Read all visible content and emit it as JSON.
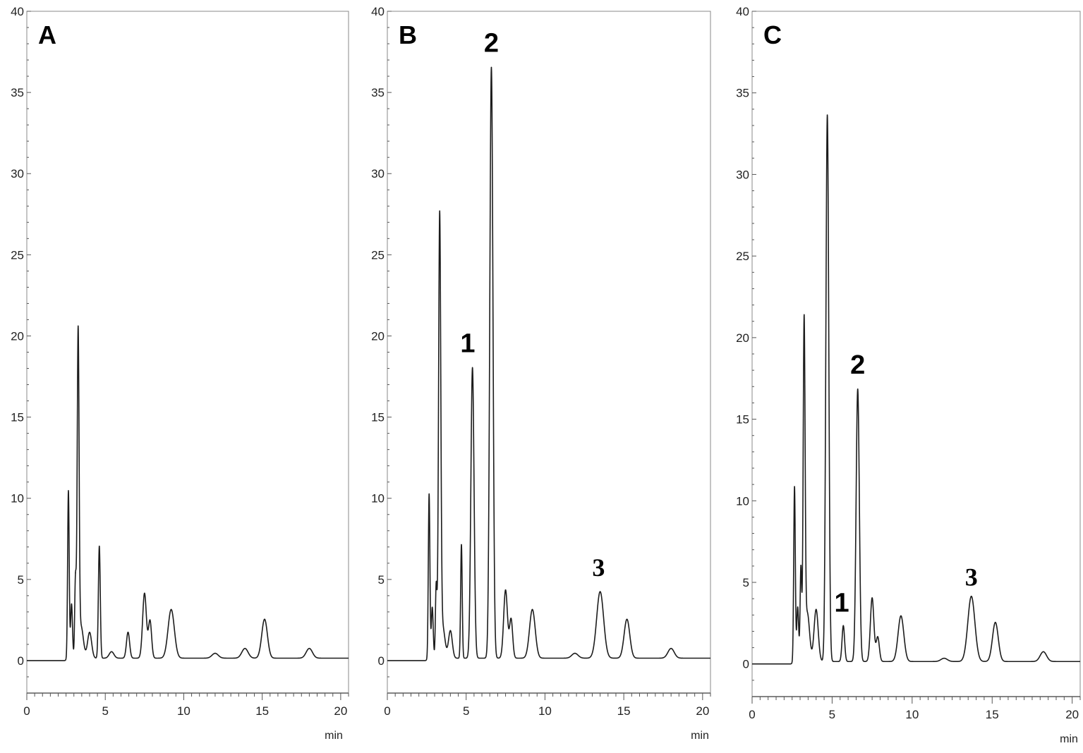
{
  "figure": {
    "unit_label": "min",
    "colors": {
      "trace": "#1c1c1c",
      "frame": "#8a8a8a",
      "background": "#ffffff"
    }
  },
  "chart_data": [
    {
      "type": "line",
      "panel_label": "A",
      "xlabel": "min",
      "ylabel": "",
      "xlim": [
        0,
        20.5
      ],
      "ylim": [
        -2,
        40
      ],
      "x_ticks": [
        0,
        5,
        10,
        15,
        20
      ],
      "y_ticks": [
        0,
        5,
        10,
        15,
        20,
        25,
        30,
        35,
        40
      ],
      "grid": false,
      "peaks": [
        {
          "rt": 2.65,
          "height": 10.4,
          "width": 0.05
        },
        {
          "rt": 2.85,
          "height": 3.4,
          "width": 0.06
        },
        {
          "rt": 3.1,
          "height": 4.8,
          "width": 0.05
        },
        {
          "rt": 3.27,
          "height": 19.5,
          "width": 0.06
        },
        {
          "rt": 3.45,
          "height": 2.0,
          "width": 0.15
        },
        {
          "rt": 4.0,
          "height": 1.6,
          "width": 0.13
        },
        {
          "rt": 4.62,
          "height": 6.9,
          "width": 0.06
        },
        {
          "rt": 5.4,
          "height": 0.4,
          "width": 0.15
        },
        {
          "rt": 6.45,
          "height": 1.6,
          "width": 0.1
        },
        {
          "rt": 7.5,
          "height": 4.0,
          "width": 0.12
        },
        {
          "rt": 7.85,
          "height": 2.3,
          "width": 0.1
        },
        {
          "rt": 9.2,
          "height": 3.0,
          "width": 0.2
        },
        {
          "rt": 12.0,
          "height": 0.3,
          "width": 0.2
        },
        {
          "rt": 13.9,
          "height": 0.6,
          "width": 0.2
        },
        {
          "rt": 15.15,
          "height": 2.4,
          "width": 0.18
        },
        {
          "rt": 18.0,
          "height": 0.6,
          "width": 0.2
        }
      ],
      "peak_labels": []
    },
    {
      "type": "line",
      "panel_label": "B",
      "xlabel": "min",
      "ylabel": "",
      "xlim": [
        0,
        20.5
      ],
      "ylim": [
        -2,
        40
      ],
      "x_ticks": [
        0,
        5,
        10,
        15,
        20
      ],
      "y_ticks": [
        0,
        5,
        10,
        15,
        20,
        25,
        30,
        35,
        40
      ],
      "grid": false,
      "peaks": [
        {
          "rt": 2.65,
          "height": 10.2,
          "width": 0.05
        },
        {
          "rt": 2.85,
          "height": 3.2,
          "width": 0.06
        },
        {
          "rt": 3.1,
          "height": 4.5,
          "width": 0.05
        },
        {
          "rt": 3.32,
          "height": 26.6,
          "width": 0.07
        },
        {
          "rt": 3.5,
          "height": 2.0,
          "width": 0.15
        },
        {
          "rt": 4.0,
          "height": 1.7,
          "width": 0.12
        },
        {
          "rt": 4.7,
          "height": 7.0,
          "width": 0.05
        },
        {
          "rt": 5.4,
          "height": 17.9,
          "width": 0.1
        },
        {
          "rt": 6.6,
          "height": 36.4,
          "width": 0.1
        },
        {
          "rt": 7.5,
          "height": 4.2,
          "width": 0.12
        },
        {
          "rt": 7.85,
          "height": 2.4,
          "width": 0.1
        },
        {
          "rt": 9.2,
          "height": 3.0,
          "width": 0.18
        },
        {
          "rt": 11.9,
          "height": 0.3,
          "width": 0.2
        },
        {
          "rt": 13.5,
          "height": 4.1,
          "width": 0.22
        },
        {
          "rt": 15.2,
          "height": 2.4,
          "width": 0.18
        },
        {
          "rt": 18.0,
          "height": 0.6,
          "width": 0.2
        }
      ],
      "peak_labels": [
        {
          "text": "1",
          "rt": 5.1,
          "y": 19.0,
          "serif": false
        },
        {
          "text": "2",
          "rt": 6.6,
          "y": 37.5,
          "serif": false
        },
        {
          "text": "3",
          "rt": 13.4,
          "y": 5.2,
          "serif": true
        }
      ]
    },
    {
      "type": "line",
      "panel_label": "C",
      "xlabel": "min",
      "ylabel": "",
      "xlim": [
        0,
        20.5
      ],
      "ylim": [
        -2,
        40
      ],
      "x_ticks": [
        0,
        5,
        10,
        15,
        20
      ],
      "y_ticks": [
        0,
        5,
        10,
        15,
        20,
        25,
        30,
        35,
        40
      ],
      "grid": false,
      "peaks": [
        {
          "rt": 2.65,
          "height": 10.8,
          "width": 0.05
        },
        {
          "rt": 2.85,
          "height": 3.4,
          "width": 0.06
        },
        {
          "rt": 3.05,
          "height": 5.8,
          "width": 0.05
        },
        {
          "rt": 3.25,
          "height": 20.2,
          "width": 0.06
        },
        {
          "rt": 3.45,
          "height": 3.0,
          "width": 0.14
        },
        {
          "rt": 4.0,
          "height": 3.2,
          "width": 0.13
        },
        {
          "rt": 4.7,
          "height": 33.5,
          "width": 0.09
        },
        {
          "rt": 5.7,
          "height": 2.2,
          "width": 0.08
        },
        {
          "rt": 6.6,
          "height": 16.7,
          "width": 0.1
        },
        {
          "rt": 7.5,
          "height": 3.9,
          "width": 0.11
        },
        {
          "rt": 7.85,
          "height": 1.5,
          "width": 0.1
        },
        {
          "rt": 9.3,
          "height": 2.8,
          "width": 0.18
        },
        {
          "rt": 12.0,
          "height": 0.2,
          "width": 0.2
        },
        {
          "rt": 13.7,
          "height": 4.0,
          "width": 0.22
        },
        {
          "rt": 15.2,
          "height": 2.4,
          "width": 0.18
        },
        {
          "rt": 18.2,
          "height": 0.6,
          "width": 0.2
        }
      ],
      "peak_labels": [
        {
          "text": "1",
          "rt": 5.6,
          "y": 3.2,
          "serif": false
        },
        {
          "text": "2",
          "rt": 6.6,
          "y": 17.8,
          "serif": false
        },
        {
          "text": "3",
          "rt": 13.7,
          "y": 4.8,
          "serif": true
        }
      ]
    }
  ]
}
